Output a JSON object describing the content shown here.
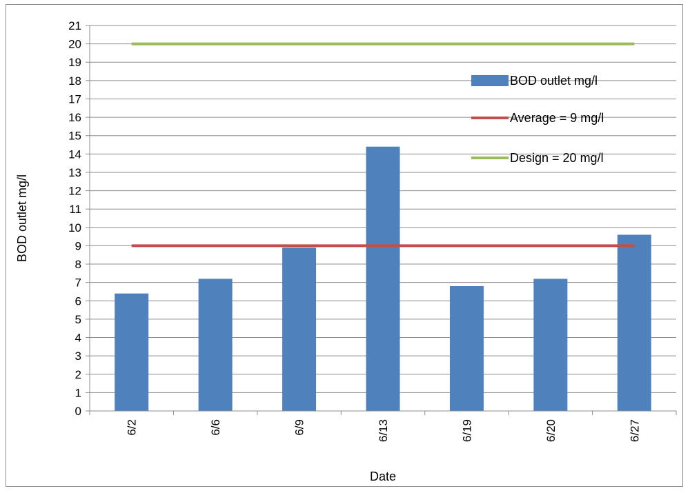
{
  "chart_data": {
    "type": "bar",
    "categories": [
      "6/2",
      "6/6",
      "6/9",
      "6/13",
      "6/19",
      "6/20",
      "6/27"
    ],
    "series": [
      {
        "name": "BOD outlet mg/l",
        "type": "bar",
        "color": "#4f81bd",
        "values": [
          6.4,
          7.2,
          8.9,
          14.4,
          6.8,
          7.2,
          9.6
        ]
      },
      {
        "name": "Average = 9 mg/l",
        "type": "line",
        "color": "#c0504d",
        "values": [
          9,
          9,
          9,
          9,
          9,
          9,
          9
        ]
      },
      {
        "name": "Design = 20 mg/l",
        "type": "line",
        "color": "#9bbb59",
        "values": [
          20,
          20,
          20,
          20,
          20,
          20,
          20
        ]
      }
    ],
    "xlabel": "Date",
    "ylabel": "BOD outlet mg/l",
    "ylim": [
      0,
      21
    ],
    "yticks": [
      0,
      1,
      2,
      3,
      4,
      5,
      6,
      7,
      8,
      9,
      10,
      11,
      12,
      13,
      14,
      15,
      16,
      17,
      18,
      19,
      20,
      21
    ],
    "grid": true,
    "legend": "top-right"
  }
}
